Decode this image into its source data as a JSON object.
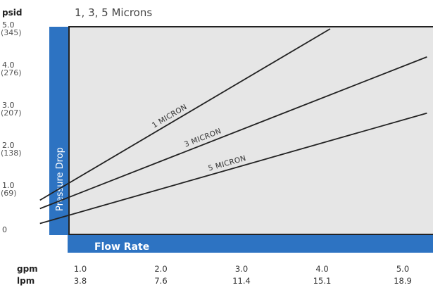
{
  "chart_data": {
    "type": "line",
    "title": "1, 3, 5 Microns",
    "y_unit_header": "psid",
    "ylabel": "Pressure Drop",
    "xlabel": "Flow Rate",
    "ylim": [
      0,
      5
    ],
    "xlim": [
      0.5,
      5.3
    ],
    "y_ticks": [
      {
        "value": 5.0,
        "label": "5.0",
        "sub": "(345)"
      },
      {
        "value": 4.0,
        "label": "4.0",
        "sub": "(276)"
      },
      {
        "value": 3.0,
        "label": "3.0",
        "sub": "(207)"
      },
      {
        "value": 2.0,
        "label": "2.0",
        "sub": "(138)"
      },
      {
        "value": 1.0,
        "label": "1.0",
        "sub": "(69)"
      },
      {
        "value": 0,
        "label": "0",
        "sub": ""
      }
    ],
    "x_ticks": [
      {
        "value": 1.0,
        "gpm": "1.0",
        "lpm": "3.8"
      },
      {
        "value": 2.0,
        "gpm": "2.0",
        "lpm": "7.6"
      },
      {
        "value": 3.0,
        "gpm": "3.0",
        "lpm": "11.4"
      },
      {
        "value": 4.0,
        "gpm": "4.0",
        "lpm": "15.1"
      },
      {
        "value": 5.0,
        "gpm": "5.0",
        "lpm": "18.9"
      }
    ],
    "x_row_labels": {
      "gpm": "gpm",
      "lpm": "lpm"
    },
    "series": [
      {
        "name": "1 MICRON",
        "x": [
          0.5,
          4.1
        ],
        "y": [
          0.73,
          5.0
        ]
      },
      {
        "name": "3 MICRON",
        "x": [
          0.5,
          5.3
        ],
        "y": [
          0.52,
          4.3
        ]
      },
      {
        "name": "5 MICRON",
        "x": [
          0.5,
          5.3
        ],
        "y": [
          0.15,
          2.9
        ]
      }
    ],
    "colors": {
      "frame": "#2d73c2",
      "plot_bg": "#e6e6e6",
      "line": "#222222"
    },
    "grid": false
  }
}
